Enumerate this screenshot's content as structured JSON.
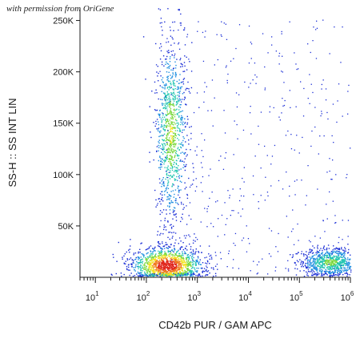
{
  "header": {
    "permission_text": "with permission from OriGene"
  },
  "chart_data": {
    "type": "scatter",
    "title": "",
    "xlabel": "CD42b PUR / GAM APC",
    "ylabel": "SS-H :: SS INT LIN",
    "x_scale": "log",
    "xlim": [
      5,
      1000000
    ],
    "ylim": [
      0,
      262144
    ],
    "x_ticks": [
      {
        "base": "10",
        "exp": "1",
        "value": 10
      },
      {
        "base": "10",
        "exp": "2",
        "value": 100
      },
      {
        "base": "10",
        "exp": "3",
        "value": 1000
      },
      {
        "base": "10",
        "exp": "4",
        "value": 10000
      },
      {
        "base": "10",
        "exp": "5",
        "value": 100000
      },
      {
        "base": "10",
        "exp": "6",
        "value": 1000000
      }
    ],
    "y_ticks": [
      {
        "label": "50K",
        "value": 50000
      },
      {
        "label": "100K",
        "value": 100000
      },
      {
        "label": "150K",
        "value": 150000
      },
      {
        "label": "200K",
        "value": 200000
      },
      {
        "label": "250K",
        "value": 250000
      }
    ],
    "grid": false,
    "colormap": [
      "#1c2fd6",
      "#1f8fe0",
      "#22c6b0",
      "#7ad83a",
      "#f2e21c",
      "#f07a1c",
      "#e0261c"
    ],
    "populations": [
      {
        "name": "",
        "x_center": 300,
        "y_center": 140000,
        "x_spread_decades": 0.16,
        "y_spread": 45000,
        "density": 0.7
      },
      {
        "name": "",
        "x_center": 250,
        "y_center": 12000,
        "x_spread_decades": 0.35,
        "y_spread": 9000,
        "density": 1.0
      },
      {
        "name": "",
        "x_center": 400000,
        "y_center": 15000,
        "x_spread_decades": 0.3,
        "y_spread": 7000,
        "density": 0.6
      }
    ]
  }
}
